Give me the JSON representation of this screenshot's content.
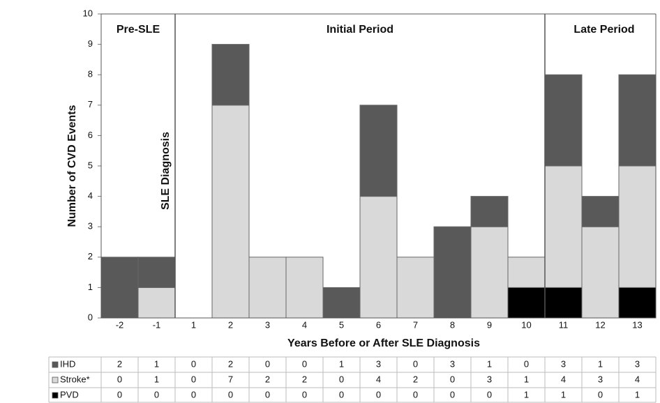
{
  "chart_data": {
    "type": "stacked_bar",
    "y_label": "Number of CVD Events",
    "x_label": "Years Before or After SLE Diagnosis",
    "categories": [
      "-2",
      "-1",
      "1",
      "2",
      "3",
      "4",
      "5",
      "6",
      "7",
      "8",
      "9",
      "10",
      "11",
      "12",
      "13"
    ],
    "series": [
      {
        "name": "IHD",
        "color": "#595959",
        "values": [
          2,
          1,
          0,
          2,
          0,
          0,
          1,
          3,
          0,
          3,
          1,
          0,
          3,
          1,
          3
        ]
      },
      {
        "name": "Stroke*",
        "color": "#d9d9d9",
        "values": [
          0,
          1,
          0,
          7,
          2,
          2,
          0,
          4,
          2,
          0,
          3,
          1,
          4,
          3,
          4
        ]
      },
      {
        "name": "PVD",
        "color": "#000000",
        "values": [
          0,
          0,
          0,
          0,
          0,
          0,
          0,
          0,
          0,
          0,
          0,
          1,
          1,
          0,
          1
        ]
      }
    ],
    "ylim": [
      0,
      10
    ],
    "yticks": [
      0,
      1,
      2,
      3,
      4,
      5,
      6,
      7,
      8,
      9,
      10
    ],
    "grid": false,
    "annotations": {
      "pre": "Pre-SLE",
      "initial": "Initial Period",
      "late": "Late Period",
      "diagnosis": "SLE Diagnosis"
    }
  }
}
